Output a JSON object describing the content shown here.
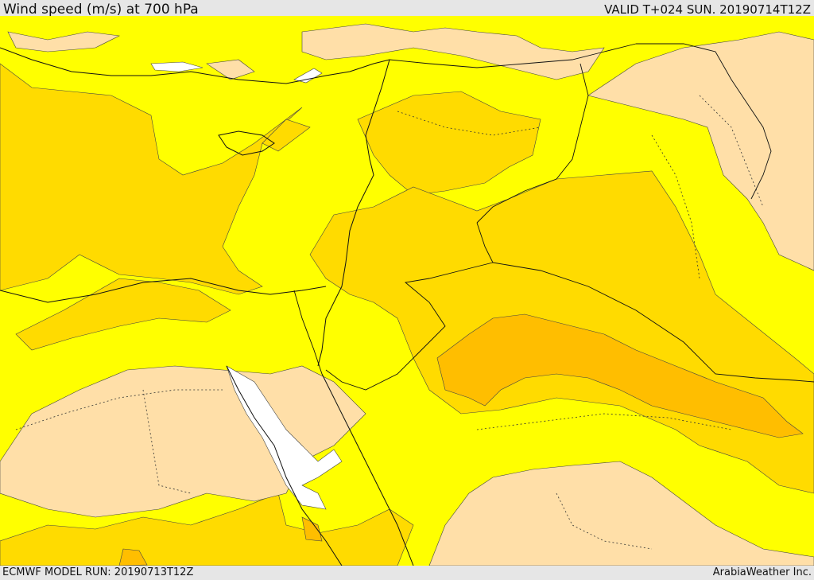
{
  "header": {
    "title": "Wind speed (m/s) at 700 hPa",
    "valid": "VALID T+024 SUN. 20190714T12Z"
  },
  "footer": {
    "model_run": "ECMWF MODEL RUN: 20190713T12Z",
    "credit": "ArabiaWeather Inc."
  },
  "colors": {
    "calm": "#ffffff",
    "light": "#ffdfa8",
    "moderate": "#ffff00",
    "fresh": "#ffdb00",
    "strong": "#ffbe00",
    "very_strong": "#ffa500",
    "border": "#111111"
  }
}
